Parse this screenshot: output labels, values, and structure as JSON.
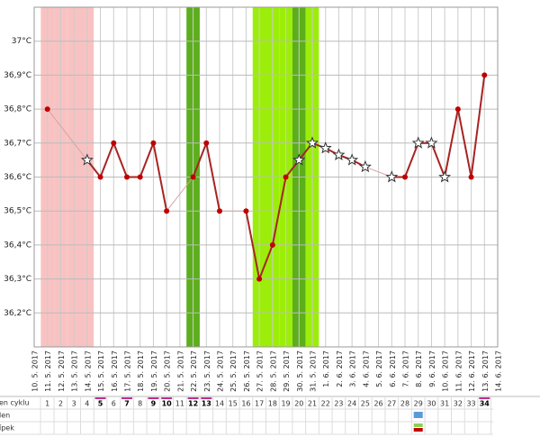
{
  "chart_data": {
    "type": "line",
    "categories": [
      "10. 5. 2017",
      "11. 5. 2017",
      "12. 5. 2017",
      "13. 5. 2017",
      "14. 5. 2017",
      "15. 5. 2017",
      "16. 5. 2017",
      "17. 5. 2017",
      "18. 5. 2017",
      "19. 5. 2017",
      "20. 5. 2017",
      "21. 5. 2017",
      "22. 5. 2017",
      "23. 5. 2017",
      "24. 5. 2017",
      "25. 5. 2017",
      "26. 5. 2017",
      "27. 5. 2017",
      "28. 5. 2017",
      "29. 5. 2017",
      "30. 5. 2017",
      "31. 5. 2017",
      "1. 6. 2017",
      "2. 6. 2017",
      "3. 6. 2017",
      "4. 6. 2017",
      "5. 6. 2017",
      "6. 6. 2017",
      "7. 6. 2017",
      "8. 6. 2017",
      "9. 6. 2017",
      "10. 6. 2017",
      "11. 6. 2017",
      "12. 6. 2017",
      "13. 6. 2017",
      "14. 6. 2017"
    ],
    "values": [
      null,
      36.8,
      null,
      null,
      36.65,
      36.6,
      36.7,
      36.6,
      36.6,
      36.7,
      36.5,
      null,
      36.6,
      36.7,
      36.5,
      null,
      36.5,
      36.3,
      36.4,
      36.6,
      36.65,
      36.7,
      36.685,
      36.665,
      36.65,
      36.63,
      null,
      36.6,
      36.6,
      36.7,
      36.7,
      36.6,
      36.8,
      36.6,
      36.9,
      null
    ],
    "point_style": [
      null,
      "dot",
      null,
      null,
      "star",
      "dot",
      "dot",
      "dot",
      "dot",
      "dot",
      "dot",
      null,
      "dot",
      "dot",
      "dot",
      null,
      "dot",
      "dot",
      "dot",
      "dot",
      "star",
      "star",
      "star",
      "star",
      "star",
      "star",
      null,
      "star",
      "dot",
      "star",
      "star",
      "star",
      "dot",
      "dot",
      "dot",
      null
    ],
    "band_colors": [
      null,
      "#f9c2c2",
      "#f9c2c2",
      "#f9c2c2",
      "#f9c2c2",
      null,
      null,
      null,
      null,
      null,
      null,
      null,
      "#5cae1c",
      null,
      null,
      null,
      null,
      "#9cee0a",
      "#9cee0a",
      "#9cee0a",
      "#5cae1c",
      "#9cee0a",
      null,
      null,
      null,
      null,
      null,
      null,
      null,
      null,
      null,
      null,
      null,
      null,
      null,
      null
    ],
    "line_color": "#a82323",
    "gap_line_color": "#d9a3a3",
    "point_color": "#c00000",
    "ylim": [
      36.1,
      37.1
    ],
    "yticks": [
      {
        "value": 36.2,
        "label": "36,2°C"
      },
      {
        "value": 36.3,
        "label": "36,3°C"
      },
      {
        "value": 36.4,
        "label": "36,4°C"
      },
      {
        "value": 36.5,
        "label": "36,5°C"
      },
      {
        "value": 36.6,
        "label": "36,6°C"
      },
      {
        "value": 36.7,
        "label": "36,7°C"
      },
      {
        "value": 36.8,
        "label": "36,8°C"
      },
      {
        "value": 36.9,
        "label": "36,9°C"
      },
      {
        "value": 37,
        "label": "37°C"
      }
    ],
    "grid": true
  },
  "table": {
    "row_labels": [
      "en cyklu",
      "len",
      "ípek"
    ],
    "cycle_days": [
      1,
      2,
      3,
      4,
      5,
      6,
      7,
      8,
      9,
      10,
      11,
      12,
      13,
      14,
      15,
      16,
      17,
      18,
      19,
      20,
      21,
      22,
      23,
      24,
      25,
      26,
      27,
      28,
      29,
      30,
      31,
      32,
      33,
      34
    ],
    "highlighted": [
      false,
      false,
      false,
      false,
      true,
      false,
      true,
      false,
      true,
      true,
      false,
      true,
      true,
      false,
      false,
      false,
      false,
      false,
      false,
      false,
      false,
      false,
      false,
      false,
      false,
      false,
      false,
      false,
      false,
      false,
      false,
      false,
      false,
      true
    ]
  }
}
